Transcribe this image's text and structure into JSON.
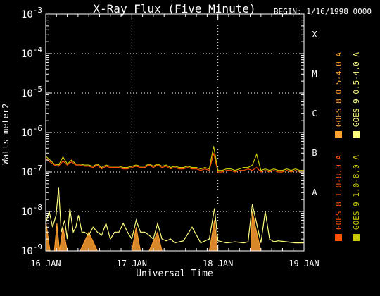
{
  "chart_data": {
    "type": "line",
    "title": "X-Ray Flux (Five Minute)",
    "begin_label": "BEGIN: 1/16/1998 0000",
    "xlabel": "Universal Time",
    "ylabel": "Watts meter2",
    "x_ticks": [
      "16 JAN",
      "17 JAN",
      "18 JAN",
      "19 JAN"
    ],
    "x_range_days": [
      0,
      3
    ],
    "y_scale": "log",
    "ylim": [
      1e-09,
      0.001
    ],
    "y_ticks": [
      {
        "base": "10",
        "exp": "-9"
      },
      {
        "base": "10",
        "exp": "-8"
      },
      {
        "base": "10",
        "exp": "-7"
      },
      {
        "base": "10",
        "exp": "-6"
      },
      {
        "base": "10",
        "exp": "-5"
      },
      {
        "base": "10",
        "exp": "-4"
      },
      {
        "base": "10",
        "exp": "-3"
      }
    ],
    "flare_classes": [
      {
        "label": "A",
        "value": 1e-08
      },
      {
        "label": "B",
        "value": 1e-07
      },
      {
        "label": "C",
        "value": 1e-06
      },
      {
        "label": "M",
        "value": 1e-05
      },
      {
        "label": "X",
        "value": 0.0001
      }
    ],
    "grid": "dotted",
    "legend_placement": "right (vertical)",
    "series": [
      {
        "name": "GOES 8 1.0-8.0 A",
        "color": "#ff4f00",
        "x": [
          0.0,
          0.05,
          0.1,
          0.15,
          0.2,
          0.25,
          0.3,
          0.35,
          0.4,
          0.45,
          0.5,
          0.55,
          0.6,
          0.65,
          0.7,
          0.75,
          0.8,
          0.85,
          0.9,
          0.95,
          1.0,
          1.05,
          1.1,
          1.15,
          1.2,
          1.25,
          1.3,
          1.35,
          1.4,
          1.45,
          1.5,
          1.55,
          1.6,
          1.65,
          1.7,
          1.75,
          1.8,
          1.85,
          1.9,
          1.95,
          2.0,
          2.05,
          2.1,
          2.15,
          2.2,
          2.25,
          2.3,
          2.35,
          2.4,
          2.45,
          2.5,
          2.55,
          2.6,
          2.65,
          2.7,
          2.75,
          2.8,
          2.85,
          2.9,
          2.95,
          3.0
        ],
        "values": [
          2.2e-07,
          1.8e-07,
          1.5e-07,
          1.4e-07,
          1.9e-07,
          1.5e-07,
          1.8e-07,
          1.5e-07,
          1.5e-07,
          1.4e-07,
          1.4e-07,
          1.3e-07,
          1.5e-07,
          1.2e-07,
          1.4e-07,
          1.3e-07,
          1.3e-07,
          1.3e-07,
          1.2e-07,
          1.2e-07,
          1.3e-07,
          1.4e-07,
          1.3e-07,
          1.3e-07,
          1.5e-07,
          1.3e-07,
          1.5e-07,
          1.3e-07,
          1.4e-07,
          1.2e-07,
          1.3e-07,
          1.2e-07,
          1.2e-07,
          1.3e-07,
          1.2e-07,
          1.2e-07,
          1.1e-07,
          1.2e-07,
          1.1e-07,
          3e-07,
          1e-07,
          1e-07,
          1.1e-07,
          1.1e-07,
          1e-07,
          1.1e-07,
          1.1e-07,
          1.2e-07,
          1.1e-07,
          1.3e-07,
          1e-07,
          1.1e-07,
          1e-07,
          1.1e-07,
          1e-07,
          1e-07,
          1.1e-07,
          1e-07,
          1.1e-07,
          1e-07,
          1e-07
        ]
      },
      {
        "name": "GOES 8 0.5-4.0 A",
        "color": "#ffa030",
        "x": [
          0.0,
          0.05,
          0.1,
          0.13,
          0.16,
          0.2,
          0.25,
          0.3,
          0.4,
          0.5,
          0.6,
          0.7,
          0.8,
          0.9,
          1.0,
          1.05,
          1.1,
          1.2,
          1.3,
          1.35,
          1.4,
          1.6,
          1.7,
          1.8,
          1.9,
          1.96,
          2.0,
          2.1,
          2.2,
          2.3,
          2.38,
          2.4,
          2.45,
          2.5,
          2.55,
          2.6,
          2.7,
          2.8,
          2.9,
          3.0
        ],
        "values": [
          6e-09,
          1e-09,
          1e-09,
          5e-09,
          1e-09,
          4e-09,
          1e-09,
          1e-09,
          1e-09,
          3e-09,
          1e-09,
          1e-09,
          1e-09,
          1e-09,
          1e-09,
          4e-09,
          1e-09,
          1e-09,
          3e-09,
          1e-09,
          1e-09,
          1e-09,
          1e-09,
          1e-09,
          1e-09,
          6e-09,
          1e-09,
          1e-09,
          1e-09,
          1e-09,
          1e-09,
          1e-08,
          3e-09,
          1e-09,
          1e-09,
          1e-09,
          1e-09,
          1e-09,
          1e-09,
          1e-09
        ]
      },
      {
        "name": "GOES 9 1.0-8.0 A",
        "color": "#c8c800",
        "x": [
          0.0,
          0.05,
          0.1,
          0.15,
          0.2,
          0.25,
          0.3,
          0.35,
          0.4,
          0.45,
          0.5,
          0.55,
          0.6,
          0.65,
          0.7,
          0.75,
          0.8,
          0.85,
          0.9,
          0.95,
          1.0,
          1.05,
          1.1,
          1.15,
          1.2,
          1.25,
          1.3,
          1.35,
          1.4,
          1.45,
          1.5,
          1.55,
          1.6,
          1.65,
          1.7,
          1.75,
          1.8,
          1.85,
          1.9,
          1.95,
          2.0,
          2.05,
          2.1,
          2.15,
          2.2,
          2.25,
          2.3,
          2.35,
          2.4,
          2.45,
          2.5,
          2.55,
          2.6,
          2.65,
          2.7,
          2.75,
          2.8,
          2.85,
          2.9,
          2.95,
          3.0
        ],
        "values": [
          2.5e-07,
          2e-07,
          1.6e-07,
          1.5e-07,
          2.4e-07,
          1.6e-07,
          2e-07,
          1.6e-07,
          1.6e-07,
          1.5e-07,
          1.5e-07,
          1.4e-07,
          1.6e-07,
          1.3e-07,
          1.5e-07,
          1.4e-07,
          1.4e-07,
          1.4e-07,
          1.3e-07,
          1.3e-07,
          1.4e-07,
          1.5e-07,
          1.4e-07,
          1.4e-07,
          1.6e-07,
          1.4e-07,
          1.6e-07,
          1.4e-07,
          1.5e-07,
          1.3e-07,
          1.4e-07,
          1.3e-07,
          1.3e-07,
          1.4e-07,
          1.3e-07,
          1.3e-07,
          1.2e-07,
          1.3e-07,
          1.2e-07,
          4.5e-07,
          1.1e-07,
          1.1e-07,
          1.2e-07,
          1.2e-07,
          1.1e-07,
          1.2e-07,
          1.3e-07,
          1.3e-07,
          1.5e-07,
          2.8e-07,
          1.1e-07,
          1.2e-07,
          1.1e-07,
          1.2e-07,
          1.1e-07,
          1.1e-07,
          1.2e-07,
          1.1e-07,
          1.2e-07,
          1.1e-07,
          1.1e-07
        ]
      },
      {
        "name": "GOES 9 0.5-4.0 A",
        "color": "#ffff80",
        "x": [
          0.0,
          0.04,
          0.08,
          0.12,
          0.15,
          0.18,
          0.22,
          0.25,
          0.28,
          0.32,
          0.35,
          0.38,
          0.42,
          0.45,
          0.5,
          0.55,
          0.6,
          0.65,
          0.7,
          0.75,
          0.8,
          0.85,
          0.9,
          0.95,
          1.0,
          1.05,
          1.1,
          1.15,
          1.2,
          1.25,
          1.3,
          1.35,
          1.4,
          1.45,
          1.5,
          1.6,
          1.7,
          1.8,
          1.9,
          1.96,
          2.0,
          2.1,
          2.2,
          2.3,
          2.35,
          2.4,
          2.45,
          2.5,
          2.55,
          2.6,
          2.65,
          2.7,
          2.8,
          2.9,
          3.0
        ],
        "values": [
          5e-09,
          1e-08,
          4e-09,
          8e-09,
          4e-08,
          3e-09,
          6e-09,
          2e-09,
          1.2e-08,
          3e-09,
          4e-09,
          8e-09,
          3e-09,
          3e-09,
          2.5e-09,
          4e-09,
          3e-09,
          2.5e-09,
          5e-09,
          2e-09,
          3e-09,
          3e-09,
          5e-09,
          3e-09,
          2e-09,
          6e-09,
          3e-09,
          3e-09,
          2.5e-09,
          2e-09,
          5e-09,
          2e-09,
          1.8e-09,
          2e-09,
          1.6e-09,
          1.8e-09,
          4e-09,
          1.6e-09,
          2e-09,
          1.2e-08,
          1.8e-09,
          1.6e-09,
          1.7e-09,
          1.6e-09,
          1.7e-09,
          1.5e-08,
          5e-09,
          1.6e-09,
          1e-08,
          2e-09,
          1.7e-09,
          1.8e-09,
          1.7e-09,
          1.6e-09,
          1.6e-09
        ]
      }
    ]
  }
}
